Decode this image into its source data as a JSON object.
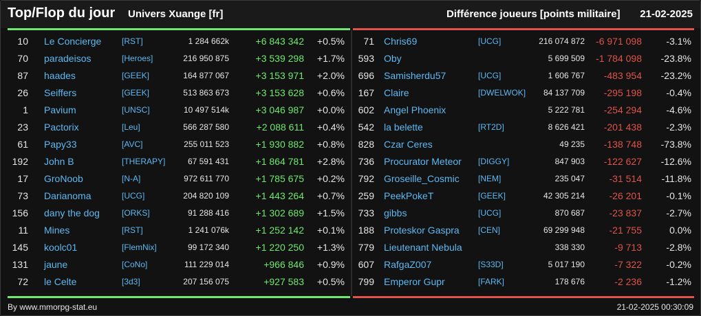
{
  "header": {
    "title": "Top/Flop du jour",
    "universe": "Univers Xuange [fr]",
    "metric": "Différence joueurs [points militaire]",
    "date": "21-02-2025"
  },
  "colors": {
    "gain": "#6ee86e",
    "loss": "#e0524a",
    "link": "#5db8f2"
  },
  "top": [
    {
      "rank": "10",
      "name": "Le Concierge",
      "alliance": "[RST]",
      "points": "1 284 662k",
      "diff": "+6 843 342",
      "pct": "+0.5%"
    },
    {
      "rank": "70",
      "name": "paradeisos",
      "alliance": "[Heroes]",
      "points": "216 950 875",
      "diff": "+3 539 298",
      "pct": "+1.7%"
    },
    {
      "rank": "87",
      "name": "haades",
      "alliance": "[GEEK]",
      "points": "164 877 067",
      "diff": "+3 153 971",
      "pct": "+2.0%"
    },
    {
      "rank": "26",
      "name": "Seiffers",
      "alliance": "[GEEK]",
      "points": "513 863 673",
      "diff": "+3 153 628",
      "pct": "+0.6%"
    },
    {
      "rank": "1",
      "name": "Pavium",
      "alliance": "[UNSC]",
      "points": "10 497 514k",
      "diff": "+3 046 987",
      "pct": "+0.0%"
    },
    {
      "rank": "23",
      "name": "Pactorix",
      "alliance": "[Leu]",
      "points": "566 287 580",
      "diff": "+2 088 611",
      "pct": "+0.4%"
    },
    {
      "rank": "61",
      "name": "Papy33",
      "alliance": "[AVC]",
      "points": "255 011 523",
      "diff": "+1 930 882",
      "pct": "+0.8%"
    },
    {
      "rank": "192",
      "name": "John B",
      "alliance": "[THERAPY]",
      "points": "67 591 431",
      "diff": "+1 864 781",
      "pct": "+2.8%"
    },
    {
      "rank": "17",
      "name": "GroNoob",
      "alliance": "[N-A]",
      "points": "972 611 770",
      "diff": "+1 785 675",
      "pct": "+0.2%"
    },
    {
      "rank": "73",
      "name": "Darianoma",
      "alliance": "[UCG]",
      "points": "204 820 109",
      "diff": "+1 443 264",
      "pct": "+0.7%"
    },
    {
      "rank": "156",
      "name": "dany the dog",
      "alliance": "[ORKS]",
      "points": "91 288 416",
      "diff": "+1 302 689",
      "pct": "+1.5%"
    },
    {
      "rank": "11",
      "name": "Mines",
      "alliance": "[RST]",
      "points": "1 241 076k",
      "diff": "+1 252 142",
      "pct": "+0.1%"
    },
    {
      "rank": "145",
      "name": "koolc01",
      "alliance": "[FlemNix]",
      "points": "99 172 340",
      "diff": "+1 220 250",
      "pct": "+1.3%"
    },
    {
      "rank": "131",
      "name": "jaune",
      "alliance": "[CoNo]",
      "points": "111 229 014",
      "diff": "+966 846",
      "pct": "+0.9%"
    },
    {
      "rank": "72",
      "name": "le Celte",
      "alliance": "[3d3]",
      "points": "207 156 075",
      "diff": "+927 583",
      "pct": "+0.5%"
    }
  ],
  "flop": [
    {
      "rank": "71",
      "name": "Chris69",
      "alliance": "[UCG]",
      "points": "216 074 872",
      "diff": "-6 971 098",
      "pct": "-3.1%"
    },
    {
      "rank": "593",
      "name": "Oby",
      "alliance": "",
      "points": "5 699 509",
      "diff": "-1 784 098",
      "pct": "-23.8%"
    },
    {
      "rank": "696",
      "name": "Samisherdu57",
      "alliance": "[UCG]",
      "points": "1 606 767",
      "diff": "-483 954",
      "pct": "-23.2%"
    },
    {
      "rank": "167",
      "name": "Claire",
      "alliance": "[DWELWOK]",
      "points": "84 137 709",
      "diff": "-295 198",
      "pct": "-0.4%"
    },
    {
      "rank": "602",
      "name": "Angel Phoenix",
      "alliance": "",
      "points": "5 222 781",
      "diff": "-254 294",
      "pct": "-4.6%"
    },
    {
      "rank": "542",
      "name": "la belette",
      "alliance": "[RT2D]",
      "points": "8 626 421",
      "diff": "-201 438",
      "pct": "-2.3%"
    },
    {
      "rank": "828",
      "name": "Czar Ceres",
      "alliance": "",
      "points": "49 235",
      "diff": "-138 748",
      "pct": "-73.8%"
    },
    {
      "rank": "736",
      "name": "Procurator Meteor",
      "alliance": "[DIGGY]",
      "points": "847 903",
      "diff": "-122 627",
      "pct": "-12.6%"
    },
    {
      "rank": "792",
      "name": "Groseille_Cosmic",
      "alliance": "[NEM]",
      "points": "235 047",
      "diff": "-31 514",
      "pct": "-11.8%"
    },
    {
      "rank": "259",
      "name": "PeekPokeT",
      "alliance": "[GEEK]",
      "points": "42 305 214",
      "diff": "-26 201",
      "pct": "-0.1%"
    },
    {
      "rank": "733",
      "name": "gibbs",
      "alliance": "[UCG]",
      "points": "870 687",
      "diff": "-23 837",
      "pct": "-2.7%"
    },
    {
      "rank": "188",
      "name": "Proteskor Gaspra",
      "alliance": "[CEN]",
      "points": "69 299 948",
      "diff": "-21 755",
      "pct": "0.0%"
    },
    {
      "rank": "779",
      "name": "Lieutenant Nebula",
      "alliance": "",
      "points": "338 330",
      "diff": "-9 713",
      "pct": "-2.8%"
    },
    {
      "rank": "607",
      "name": "RafgaZ007",
      "alliance": "[S33D]",
      "points": "5 017 190",
      "diff": "-7 322",
      "pct": "-0.2%"
    },
    {
      "rank": "799",
      "name": "Emperor Gupr",
      "alliance": "[FARK]",
      "points": "178 676",
      "diff": "-2 236",
      "pct": "-1.2%"
    }
  ],
  "footer": {
    "source": "By www.mmorpg-stat.eu",
    "timestamp": "21-02-2025 00:30:09"
  }
}
